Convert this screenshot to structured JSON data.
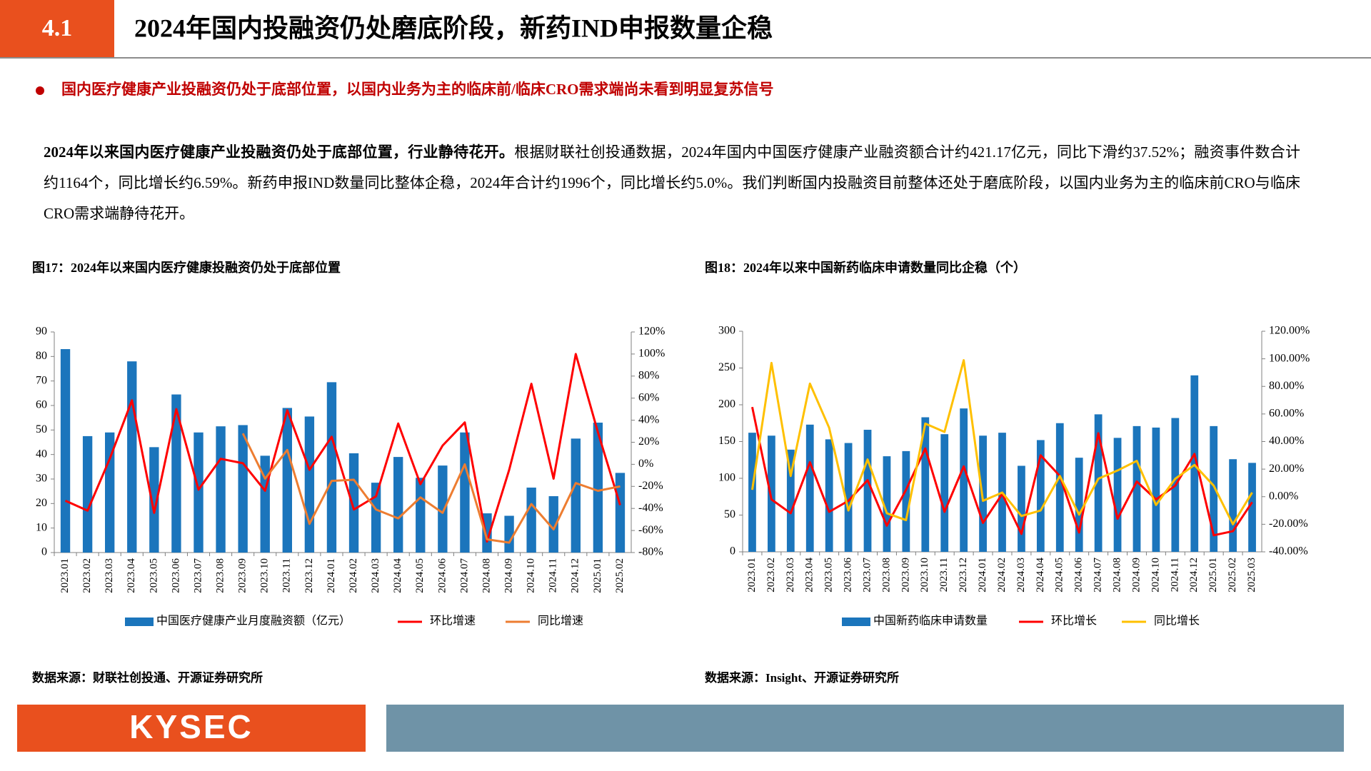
{
  "header": {
    "section": "4.1",
    "title": "2024年国内投融资仍处磨底阶段，新药IND申报数量企稳"
  },
  "bullet": "国内医疗健康产业投融资仍处于底部位置，以国内业务为主的临床前/临床CRO需求端尚未看到明显复苏信号",
  "paragraph": {
    "lead": "2024年以来国内医疗健康产业投融资仍处于底部位置，行业静待花开。",
    "body": "根据财联社创投通数据，2024年国内中国医疗健康产业融资额合计约421.17亿元，同比下滑约37.52%；融资事件数合计约1164个，同比增长约6.59%。新药申报IND数量同比整体企稳，2024年合计约1996个，同比增长约5.0%。我们判断国内投融资目前整体还处于磨底阶段，以国内业务为主的临床前CRO与临床CRO需求端静待花开。"
  },
  "chart_data": [
    {
      "type": "combo",
      "title": "图17：2024年以来国内医疗健康投融资仍处于底部位置",
      "categories": [
        "2023.01",
        "2023.02",
        "2023.03",
        "2023.04",
        "2023.05",
        "2023.06",
        "2023.07",
        "2023.08",
        "2023.09",
        "2023.10",
        "2023.11",
        "2023.12",
        "2024.01",
        "2024.02",
        "2024.03",
        "2024.04",
        "2024.05",
        "2024.06",
        "2024.07",
        "2024.08",
        "2024.09",
        "2024.10",
        "2024.11",
        "2024.12",
        "2025.01",
        "2025.02"
      ],
      "series": [
        {
          "name": "中国医疗健康产业月度融资额（亿元）",
          "type": "bar",
          "color": "#1b75bc",
          "values": [
            83,
            47.5,
            49,
            78,
            43,
            64.5,
            49,
            51.5,
            52,
            39.5,
            59,
            55.5,
            69.5,
            40.5,
            28.5,
            39,
            30.5,
            35.5,
            49,
            16,
            15,
            26.5,
            23,
            46.5,
            53,
            32.5
          ]
        },
        {
          "name": "环比增速",
          "type": "line",
          "axis": "y2",
          "color": "#ff0000",
          "values": [
            -33,
            -42,
            5,
            58,
            -44,
            50,
            -23,
            5,
            1,
            -24,
            49,
            -5,
            25,
            -41,
            -29,
            37,
            -18,
            17,
            38,
            -70,
            -5,
            73,
            -13,
            100,
            29,
            -37
          ]
        },
        {
          "name": "同比增速",
          "type": "line",
          "axis": "y2",
          "color": "#ed7d31",
          "values": [
            null,
            null,
            null,
            null,
            null,
            null,
            null,
            null,
            28,
            -13,
            13,
            -54,
            -15,
            -14,
            -41,
            -49,
            -30,
            -44,
            0,
            -68,
            -71,
            -36,
            -59,
            -17,
            -24,
            -20
          ]
        }
      ],
      "ylim": [
        0,
        90
      ],
      "yticks": [
        0,
        10,
        20,
        30,
        40,
        50,
        60,
        70,
        80,
        90
      ],
      "y2lim": [
        -80,
        120
      ],
      "y2ticks": [
        {
          "value": -80,
          "label": "-80%"
        },
        {
          "value": -60,
          "label": "-60%"
        },
        {
          "value": -40,
          "label": "-40%"
        },
        {
          "value": -20,
          "label": "-20%"
        },
        {
          "value": 0,
          "label": "0%"
        },
        {
          "value": 20,
          "label": "20%"
        },
        {
          "value": 40,
          "label": "40%"
        },
        {
          "value": 60,
          "label": "60%"
        },
        {
          "value": 80,
          "label": "80%"
        },
        {
          "value": 100,
          "label": "100%"
        },
        {
          "value": 120,
          "label": "120%"
        }
      ],
      "grid": false,
      "source": "数据来源：财联社创投通、开源证券研究所"
    },
    {
      "type": "combo",
      "title": "图18：2024年以来中国新药临床申请数量同比企稳（个）",
      "categories": [
        "2023.01",
        "2023.02",
        "2023.03",
        "2023.04",
        "2023.05",
        "2023.06",
        "2023.07",
        "2023.08",
        "2023.09",
        "2023.10",
        "2023.11",
        "2023.12",
        "2024.01",
        "2024.02",
        "2024.03",
        "2024.04",
        "2024.05",
        "2024.06",
        "2024.07",
        "2024.08",
        "2024.09",
        "2024.10",
        "2024.11",
        "2024.12",
        "2025.01",
        "2025.02",
        "2025.03"
      ],
      "series": [
        {
          "name": "中国新药临床申请数量",
          "type": "bar",
          "color": "#1b75bc",
          "values": [
            162,
            158,
            139,
            173,
            153,
            148,
            166,
            130,
            137,
            183,
            160,
            195,
            158,
            162,
            117,
            152,
            175,
            128,
            187,
            155,
            171,
            169,
            182,
            240,
            171,
            126,
            121
          ]
        },
        {
          "name": "环比增长",
          "type": "line",
          "axis": "y2",
          "color": "#ff0000",
          "values": [
            65,
            -2,
            -12,
            25,
            -11,
            -3,
            12,
            -21,
            5,
            35,
            -11,
            22,
            -19,
            2,
            -27,
            30,
            15,
            -26,
            46,
            -16,
            11,
            -2,
            8,
            31,
            -28,
            -25,
            -4
          ]
        },
        {
          "name": "同比增长",
          "type": "line",
          "axis": "y2",
          "color": "#ffc000",
          "values": [
            5,
            97,
            15,
            82,
            50,
            -10,
            27,
            -12,
            -17,
            53,
            47,
            99,
            -3,
            3,
            -14,
            -10,
            15,
            -13,
            13,
            19,
            26,
            -6,
            13,
            23,
            8,
            -20,
            3
          ]
        }
      ],
      "ylim": [
        0,
        300
      ],
      "yticks": [
        0,
        50,
        100,
        150,
        200,
        250,
        300
      ],
      "y2lim": [
        -40,
        120
      ],
      "y2ticks": [
        {
          "value": -40,
          "label": "-40.00%"
        },
        {
          "value": -20,
          "label": "-20.00%"
        },
        {
          "value": 0,
          "label": "0.00%"
        },
        {
          "value": 20,
          "label": "20.00%"
        },
        {
          "value": 40,
          "label": "40.00%"
        },
        {
          "value": 60,
          "label": "60.00%"
        },
        {
          "value": 80,
          "label": "80.00%"
        },
        {
          "value": 100,
          "label": "100.00%"
        },
        {
          "value": 120,
          "label": "120.00%"
        }
      ],
      "grid": false,
      "source": "数据来源：Insight、开源证券研究所"
    }
  ],
  "footer": {
    "logo": "KYSEC"
  }
}
